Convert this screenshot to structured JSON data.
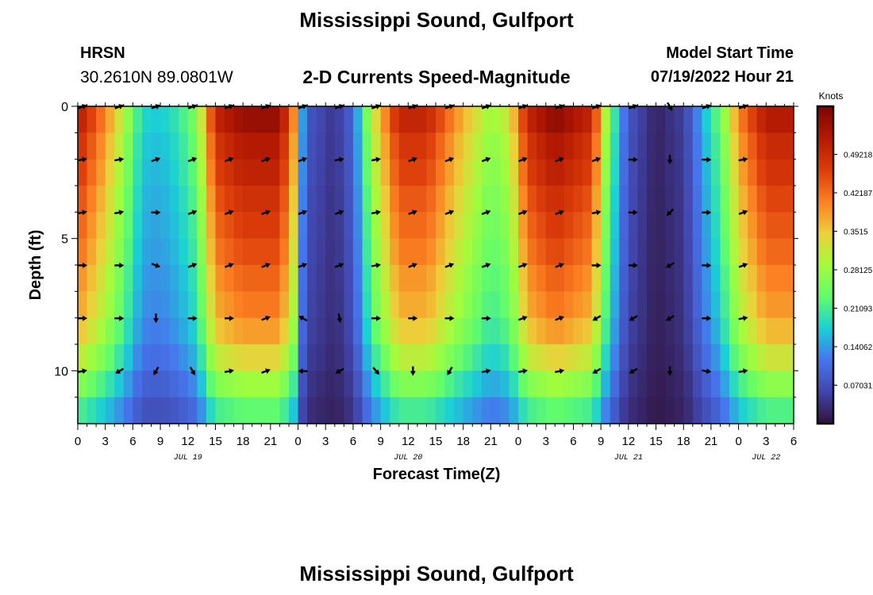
{
  "page": {
    "title_top": "Mississippi Sound, Gulfport",
    "title_bottom": "Mississippi Sound, Gulfport",
    "station_name": "HRSN",
    "station_coords": "30.2610N  89.0801W",
    "subtitle": "2-D Currents Speed-Magnitude",
    "model_start_label": "Model Start Time",
    "model_start_value": "07/19/2022 Hour 21"
  },
  "chart_data": {
    "type": "heatmap",
    "title": "2-D Currents Speed-Magnitude",
    "xlabel": "Forecast Time(Z)",
    "ylabel": "Depth (ft)",
    "x_start_hour": 0,
    "x_end_hour": 78,
    "x_step_hours": 1,
    "xtick_hours": [
      0,
      3,
      6,
      9,
      12,
      15,
      18,
      21,
      24,
      27,
      30,
      33,
      36,
      39,
      42,
      45,
      48,
      51,
      54,
      57,
      60,
      63,
      66,
      69,
      72,
      75,
      78
    ],
    "xtick_labels": [
      "0",
      "3",
      "6",
      "9",
      "12",
      "15",
      "18",
      "21",
      "0",
      "3",
      "6",
      "9",
      "12",
      "15",
      "18",
      "21",
      "0",
      "3",
      "6",
      "9",
      "12",
      "15",
      "18",
      "21",
      "0",
      "3",
      "6"
    ],
    "date_labels": [
      {
        "hour": 12,
        "label": "JUL 19"
      },
      {
        "hour": 36,
        "label": "JUL 20"
      },
      {
        "hour": 60,
        "label": "JUL 21"
      },
      {
        "hour": 75,
        "label": "JUL 22"
      }
    ],
    "ylim": [
      0,
      12
    ],
    "y_inverted": true,
    "ytick_labels": [
      {
        "value": 0,
        "label": "0"
      },
      {
        "value": 5,
        "label": "5"
      },
      {
        "value": 10,
        "label": "10"
      }
    ],
    "y_minor_ticks": [
      1,
      2,
      3,
      4,
      6,
      7,
      8,
      9,
      11
    ],
    "depth_rows": [
      0,
      1,
      2,
      3,
      4,
      5,
      6,
      7,
      8,
      9,
      10,
      11
    ],
    "surface_speed_profile": [
      [
        0,
        0.52
      ],
      [
        3,
        0.4
      ],
      [
        5,
        0.3
      ],
      [
        6,
        0.24
      ],
      [
        7,
        0.18
      ],
      [
        9,
        0.17
      ],
      [
        11,
        0.2
      ],
      [
        13,
        0.26
      ],
      [
        15,
        0.5
      ],
      [
        18,
        0.55
      ],
      [
        22,
        0.55
      ],
      [
        23.5,
        0.4
      ],
      [
        24,
        0.2
      ],
      [
        25,
        0.08
      ],
      [
        28,
        0.04
      ],
      [
        30,
        0.1
      ],
      [
        32,
        0.3
      ],
      [
        35,
        0.5
      ],
      [
        38,
        0.5
      ],
      [
        41,
        0.4
      ],
      [
        45,
        0.28
      ],
      [
        47,
        0.32
      ],
      [
        49,
        0.5
      ],
      [
        52,
        0.56
      ],
      [
        56,
        0.5
      ],
      [
        57.5,
        0.3
      ],
      [
        59,
        0.15
      ],
      [
        60,
        0.08
      ],
      [
        63,
        0.02
      ],
      [
        66,
        0.05
      ],
      [
        68,
        0.15
      ],
      [
        70,
        0.24
      ],
      [
        72,
        0.4
      ],
      [
        75,
        0.52
      ],
      [
        78,
        0.52
      ]
    ],
    "depth_factors": [
      1.0,
      0.95,
      0.92,
      0.88,
      0.85,
      0.82,
      0.78,
      0.75,
      0.7,
      0.62,
      0.52,
      0.42
    ],
    "colorbar": {
      "label": "Knots",
      "min": 0.0,
      "max": 0.58,
      "tick_values": [
        0.07031,
        0.14062,
        0.21093,
        0.28125,
        0.3515,
        0.42187,
        0.49218
      ],
      "tick_labels": [
        "0.07031",
        "0.14062",
        "0.21093",
        "0.28125",
        "0.3515",
        "0.42187",
        "0.49218"
      ]
    },
    "vector_hours": [
      0,
      4,
      8,
      12,
      16,
      20,
      24,
      28,
      32,
      36,
      40,
      44,
      48,
      52,
      56,
      60,
      64,
      68,
      72
    ],
    "vector_depths": [
      0,
      2,
      4,
      6,
      8,
      10
    ],
    "vector_directions_deg": [
      [
        70,
        70,
        70,
        70,
        70,
        70,
        70,
        70,
        70,
        70,
        70,
        70,
        70,
        70,
        70,
        70,
        150,
        70,
        70
      ],
      [
        80,
        80,
        70,
        70,
        70,
        70,
        70,
        80,
        80,
        70,
        70,
        70,
        70,
        70,
        70,
        90,
        180,
        90,
        80
      ],
      [
        80,
        80,
        90,
        70,
        70,
        70,
        70,
        70,
        80,
        70,
        70,
        70,
        70,
        70,
        80,
        90,
        225,
        90,
        70
      ],
      [
        90,
        90,
        110,
        70,
        70,
        70,
        70,
        70,
        80,
        70,
        70,
        70,
        70,
        70,
        90,
        90,
        240,
        90,
        70
      ],
      [
        90,
        90,
        180,
        90,
        90,
        70,
        300,
        170,
        90,
        90,
        90,
        90,
        70,
        70,
        240,
        240,
        240,
        90,
        80
      ],
      [
        80,
        240,
        210,
        150,
        80,
        70,
        270,
        240,
        140,
        180,
        210,
        80,
        80,
        80,
        240,
        240,
        180,
        100,
        80
      ]
    ]
  }
}
